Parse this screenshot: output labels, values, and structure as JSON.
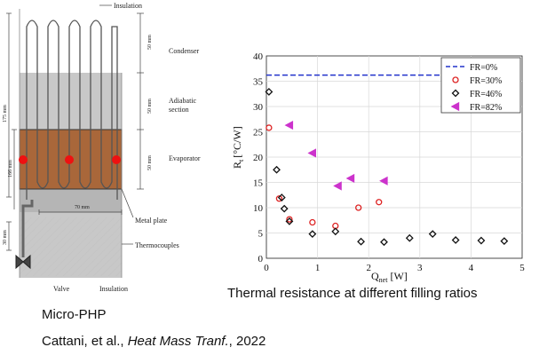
{
  "diagram": {
    "labels": {
      "insulation_top": "Insulation",
      "condenser": "Condenser",
      "adiabatic_1": "Adiabatic",
      "adiabatic_2": "section",
      "evaporator": "Evaporator",
      "metal_plate": "Metal plate",
      "thermocouples": "Thermocouples",
      "valve": "Valve",
      "insulation_bottom": "Insulation",
      "dim_50_a": "50 mm",
      "dim_50_b": "50 mm",
      "dim_50_c": "50 mm",
      "dim_175": "175 mm",
      "dim_166": "166 mm",
      "dim_70": "70 mm",
      "dim_30": "30 mm"
    },
    "colors": {
      "evaporator": "#a9673a",
      "thermocouple": "#ee1111",
      "insulation": "#c8c8c8"
    }
  },
  "chart_data": {
    "type": "scatter",
    "xlabel": "Q",
    "xlabel_sub": "net",
    "xlabel_unit": "[W]",
    "ylabel": "R",
    "ylabel_sub": "t",
    "ylabel_unit": "[°C/W]",
    "xlim": [
      0,
      5
    ],
    "ylim": [
      0,
      40
    ],
    "xticks": [
      0,
      1,
      2,
      3,
      4,
      5
    ],
    "yticks": [
      0,
      5,
      10,
      15,
      20,
      25,
      30,
      35,
      40
    ],
    "grid": true,
    "legend_position": "top-right",
    "series": [
      {
        "name": "FR=0%",
        "style": "dashed-line",
        "color": "#2233cc",
        "x": [
          0,
          5
        ],
        "y": [
          36.2,
          36.2
        ]
      },
      {
        "name": "FR=30%",
        "style": "circle",
        "color": "#dd2222",
        "x": [
          0.05,
          0.25,
          0.45,
          0.9,
          1.35,
          1.8,
          2.2
        ],
        "y": [
          25.8,
          11.8,
          7.7,
          7.1,
          6.4,
          10.0,
          11.1
        ]
      },
      {
        "name": "FR=46%",
        "style": "diamond",
        "color": "#111111",
        "x": [
          0.05,
          0.2,
          0.3,
          0.35,
          0.45,
          0.9,
          1.35,
          1.85,
          2.3,
          2.8,
          3.25,
          3.7,
          4.2,
          4.65
        ],
        "y": [
          32.9,
          17.5,
          12.0,
          9.8,
          7.3,
          4.8,
          5.3,
          3.3,
          3.2,
          4.0,
          4.8,
          3.6,
          3.5,
          3.4
        ]
      },
      {
        "name": "FR=82%",
        "style": "triangle-left",
        "color": "#cc33cc",
        "x": [
          0.45,
          0.9,
          1.4,
          1.65,
          2.3
        ],
        "y": [
          26.3,
          20.8,
          14.3,
          15.8,
          15.3
        ]
      }
    ]
  },
  "captions": {
    "chart": "Thermal resistance at different filling ratios",
    "php": "Micro-PHP",
    "citation_authors": "Cattani, et al., ",
    "citation_journal": "Heat Mass Tranf.",
    "citation_year": ", 2022"
  }
}
